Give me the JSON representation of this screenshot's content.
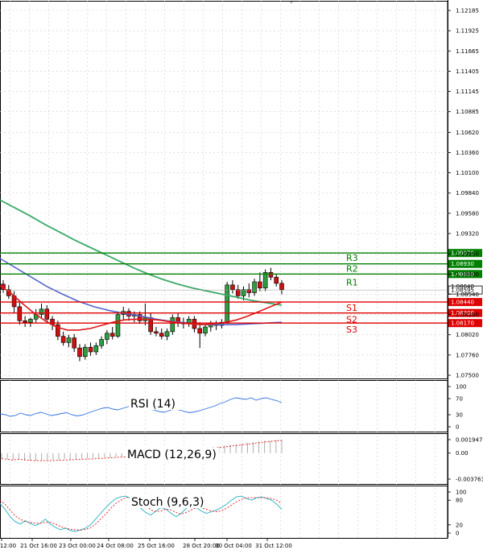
{
  "chart_data": {
    "type": "candlestick",
    "price_axis": {
      "min": 1.075,
      "max": 1.12185,
      "ticks": [
        "1.12185",
        "1.11925",
        "1.11665",
        "1.11405",
        "1.11145",
        "1.10885",
        "1.10620",
        "1.10360",
        "1.10100",
        "1.09840",
        "1.09580",
        "1.09320",
        "1.09060",
        "1.08800",
        "1.08540",
        "1.08280",
        "1.08020",
        "1.07760",
        "1.07500"
      ]
    },
    "dates": [
      "12:00",
      "21 Oct 16:00",
      "23 Oct 00:00",
      "24 Oct 08:00",
      "25 Oct 16:00",
      "28 Oct 20:00",
      "30 Oct 04:00",
      "31 Oct 12:00"
    ],
    "candles": [
      {
        "o": 1.0867,
        "h": 1.0872,
        "l": 1.0856,
        "c": 1.086
      },
      {
        "o": 1.086,
        "h": 1.0866,
        "l": 1.0848,
        "c": 1.0852
      },
      {
        "o": 1.0852,
        "h": 1.0858,
        "l": 1.083,
        "c": 1.0838
      },
      {
        "o": 1.0838,
        "h": 1.0845,
        "l": 1.0815,
        "c": 1.082
      },
      {
        "o": 1.082,
        "h": 1.0826,
        "l": 1.0812,
        "c": 1.0818
      },
      {
        "o": 1.0818,
        "h": 1.0824,
        "l": 1.0812,
        "c": 1.0822
      },
      {
        "o": 1.0822,
        "h": 1.0835,
        "l": 1.0818,
        "c": 1.0828
      },
      {
        "o": 1.0828,
        "h": 1.0842,
        "l": 1.0824,
        "c": 1.0835
      },
      {
        "o": 1.0835,
        "h": 1.084,
        "l": 1.0818,
        "c": 1.0822
      },
      {
        "o": 1.0822,
        "h": 1.0826,
        "l": 1.0808,
        "c": 1.0815
      },
      {
        "o": 1.0815,
        "h": 1.082,
        "l": 1.0795,
        "c": 1.08
      },
      {
        "o": 1.08,
        "h": 1.0806,
        "l": 1.0788,
        "c": 1.0792
      },
      {
        "o": 1.0792,
        "h": 1.0802,
        "l": 1.0786,
        "c": 1.0798
      },
      {
        "o": 1.0798,
        "h": 1.0803,
        "l": 1.078,
        "c": 1.0785
      },
      {
        "o": 1.0785,
        "h": 1.079,
        "l": 1.0768,
        "c": 1.0774
      },
      {
        "o": 1.0774,
        "h": 1.079,
        "l": 1.077,
        "c": 1.0786
      },
      {
        "o": 1.0786,
        "h": 1.0792,
        "l": 1.0775,
        "c": 1.078
      },
      {
        "o": 1.078,
        "h": 1.0792,
        "l": 1.0776,
        "c": 1.0788
      },
      {
        "o": 1.0788,
        "h": 1.08,
        "l": 1.0784,
        "c": 1.0796
      },
      {
        "o": 1.0796,
        "h": 1.0808,
        "l": 1.079,
        "c": 1.0804
      },
      {
        "o": 1.0804,
        "h": 1.0812,
        "l": 1.0796,
        "c": 1.08
      },
      {
        "o": 1.08,
        "h": 1.0832,
        "l": 1.0798,
        "c": 1.0828
      },
      {
        "o": 1.0828,
        "h": 1.0838,
        "l": 1.082,
        "c": 1.0832
      },
      {
        "o": 1.0832,
        "h": 1.0836,
        "l": 1.082,
        "c": 1.0826
      },
      {
        "o": 1.0826,
        "h": 1.0832,
        "l": 1.0818,
        "c": 1.0828
      },
      {
        "o": 1.0828,
        "h": 1.0832,
        "l": 1.0816,
        "c": 1.082
      },
      {
        "o": 1.082,
        "h": 1.0842,
        "l": 1.0814,
        "c": 1.0824
      },
      {
        "o": 1.0824,
        "h": 1.083,
        "l": 1.0802,
        "c": 1.0806
      },
      {
        "o": 1.0806,
        "h": 1.0812,
        "l": 1.08,
        "c": 1.0804
      },
      {
        "o": 1.0804,
        "h": 1.081,
        "l": 1.0796,
        "c": 1.08
      },
      {
        "o": 1.08,
        "h": 1.081,
        "l": 1.0795,
        "c": 1.0806
      },
      {
        "o": 1.0806,
        "h": 1.0828,
        "l": 1.0802,
        "c": 1.0824
      },
      {
        "o": 1.0824,
        "h": 1.083,
        "l": 1.0812,
        "c": 1.0818
      },
      {
        "o": 1.0818,
        "h": 1.0824,
        "l": 1.081,
        "c": 1.0816
      },
      {
        "o": 1.0816,
        "h": 1.0826,
        "l": 1.0812,
        "c": 1.0822
      },
      {
        "o": 1.0822,
        "h": 1.0826,
        "l": 1.0805,
        "c": 1.081
      },
      {
        "o": 1.081,
        "h": 1.0818,
        "l": 1.0785,
        "c": 1.0804
      },
      {
        "o": 1.0804,
        "h": 1.0815,
        "l": 1.08,
        "c": 1.0812
      },
      {
        "o": 1.0812,
        "h": 1.082,
        "l": 1.0806,
        "c": 1.0816
      },
      {
        "o": 1.0816,
        "h": 1.082,
        "l": 1.0808,
        "c": 1.0814
      },
      {
        "o": 1.0814,
        "h": 1.0822,
        "l": 1.081,
        "c": 1.0818
      },
      {
        "o": 1.0818,
        "h": 1.087,
        "l": 1.0816,
        "c": 1.0866
      },
      {
        "o": 1.0866,
        "h": 1.0872,
        "l": 1.0855,
        "c": 1.086
      },
      {
        "o": 1.086,
        "h": 1.0866,
        "l": 1.0848,
        "c": 1.0852
      },
      {
        "o": 1.0852,
        "h": 1.0864,
        "l": 1.0846,
        "c": 1.086
      },
      {
        "o": 1.086,
        "h": 1.0868,
        "l": 1.085,
        "c": 1.0856
      },
      {
        "o": 1.0856,
        "h": 1.0874,
        "l": 1.0852,
        "c": 1.087
      },
      {
        "o": 1.087,
        "h": 1.0882,
        "l": 1.0858,
        "c": 1.0862
      },
      {
        "o": 1.0862,
        "h": 1.0886,
        "l": 1.0858,
        "c": 1.0882
      },
      {
        "o": 1.0882,
        "h": 1.0888,
        "l": 1.0872,
        "c": 1.0876
      },
      {
        "o": 1.0876,
        "h": 1.088,
        "l": 1.0864,
        "c": 1.0868
      },
      {
        "o": 1.0868,
        "h": 1.0872,
        "l": 1.0854,
        "c": 1.086
      }
    ],
    "ma_green": [
      1.0975,
      1.0965,
      1.0955,
      1.0944,
      1.0934,
      1.0924,
      1.0915,
      1.0906,
      1.0897,
      1.0888,
      1.088,
      1.0873,
      1.0867,
      1.0862,
      1.0858,
      1.0854,
      1.085,
      1.0846,
      1.0843,
      1.084
    ],
    "ma_blue": [
      1.09,
      1.0888,
      1.0876,
      1.0864,
      1.0854,
      1.0845,
      1.0838,
      1.0833,
      1.0829,
      1.0826,
      1.0822,
      1.0819,
      1.0817,
      1.0815,
      1.0815,
      1.0815,
      1.0816,
      1.0817,
      1.0818
    ],
    "ma_red": [
      1.0865,
      1.0855,
      1.0842,
      1.083,
      1.082,
      1.0812,
      1.0808,
      1.0808,
      1.081,
      1.0814,
      1.0818,
      1.0821,
      1.0822,
      1.0822,
      1.0821,
      1.0819,
      1.0817,
      1.0816,
      1.0815,
      1.0816,
      1.0818,
      1.0821,
      1.0826,
      1.0832,
      1.0838,
      1.0844
    ],
    "levels": [
      {
        "name": "R3",
        "value": "1.09070",
        "price": 1.0907,
        "color": "#008000"
      },
      {
        "name": "R2",
        "value": "1.08930",
        "price": 1.0893,
        "color": "#008000"
      },
      {
        "name": "R1",
        "value": "1.08800",
        "price": 1.088,
        "color": "#008000"
      },
      {
        "name": "S1",
        "value": "1.08440",
        "price": 1.0844,
        "color": "#e00000"
      },
      {
        "name": "S2",
        "value": "1.08300",
        "price": 1.083,
        "color": "#e00000"
      },
      {
        "name": "S3",
        "value": "1.08170",
        "price": 1.0817,
        "color": "#e00000"
      }
    ],
    "current_price": {
      "value": "1.08595",
      "price": 1.08595
    },
    "partial_label": "1.08640",
    "rsi": {
      "label": "RSI (14)",
      "ticks": [
        "100",
        "70",
        "30",
        "0"
      ],
      "min": 0,
      "max": 100,
      "values": [
        32,
        30,
        26,
        28,
        34,
        30,
        28,
        33,
        36,
        32,
        28,
        30,
        33,
        35,
        30,
        27,
        29,
        33,
        38,
        42,
        46,
        48,
        44,
        42,
        46,
        50,
        54,
        48,
        46,
        44,
        42,
        38,
        36,
        40,
        44,
        42,
        38,
        35,
        37,
        40,
        44,
        48,
        52,
        58,
        62,
        68,
        72,
        70,
        68,
        72,
        66,
        70,
        72,
        68,
        65,
        60
      ]
    },
    "macd": {
      "label": "MACD (12,26,9)",
      "ticks": [
        "0.001947",
        "0.00",
        "-0.003763"
      ],
      "min": -0.003763,
      "max": 0.001947,
      "values": [
        -0.0008,
        -0.0009,
        -0.001,
        -0.001,
        -0.0011,
        -0.0011,
        -0.0011,
        -0.0011,
        -0.001,
        -0.001,
        -0.001,
        -0.0009,
        -0.0009,
        -0.0009,
        -0.0008,
        -0.0008,
        -0.0007,
        -0.0007,
        -0.0006,
        -0.0006,
        -0.0005,
        -0.0005,
        -0.0004,
        -0.0004,
        -0.0003,
        -0.0003,
        -0.0002,
        -0.0001,
        0.0,
        0.0001,
        0.0002,
        0.0003,
        0.0004,
        0.0005,
        0.0006,
        0.0007,
        0.0008,
        0.0009,
        0.001,
        0.0011,
        0.0012,
        0.0013,
        0.0014,
        0.0015,
        0.0016,
        0.0017,
        0.0018,
        0.0018,
        0.0019,
        0.0019
      ]
    },
    "stoch": {
      "label": "Stoch (9,6,3)",
      "ticks": [
        "100",
        "80",
        "20",
        "0"
      ],
      "min": 0,
      "max": 100,
      "k": [
        72,
        58,
        40,
        28,
        22,
        30,
        24,
        18,
        24,
        34,
        22,
        14,
        8,
        12,
        6,
        4,
        8,
        12,
        20,
        34,
        48,
        62,
        74,
        84,
        88,
        90,
        84,
        74,
        60,
        50,
        44,
        54,
        62,
        58,
        48,
        40,
        48,
        60,
        70,
        62,
        54,
        48,
        52,
        56,
        62,
        70,
        80,
        88,
        90,
        84,
        80,
        86,
        88,
        84,
        80,
        70,
        58
      ],
      "d": [
        80,
        70,
        56,
        42,
        34,
        28,
        26,
        24,
        24,
        26,
        26,
        22,
        16,
        12,
        9,
        8,
        7,
        9,
        13,
        22,
        34,
        46,
        60,
        72,
        80,
        86,
        88,
        84,
        76,
        66,
        56,
        52,
        54,
        58,
        56,
        50,
        46,
        50,
        56,
        62,
        62,
        58,
        54,
        52,
        54,
        60,
        68,
        76,
        82,
        86,
        86,
        86,
        86,
        86,
        84,
        80,
        72
      ]
    }
  }
}
